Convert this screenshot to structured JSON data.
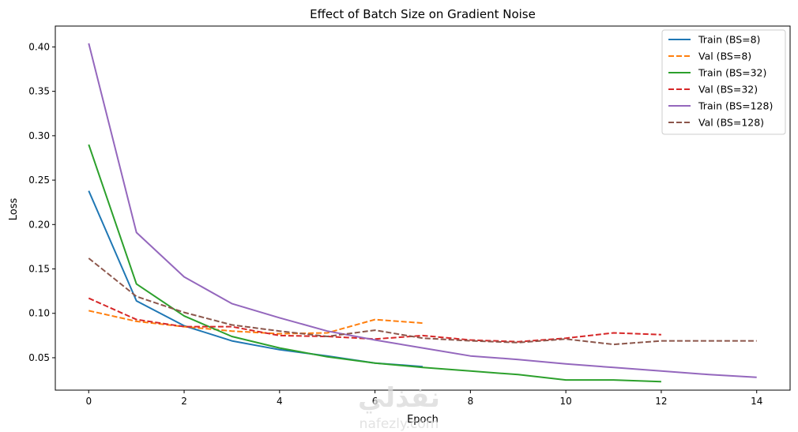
{
  "chart_data": {
    "type": "line",
    "title": "Effect of Batch Size on Gradient Noise",
    "xlabel": "Epoch",
    "ylabel": "Loss",
    "xlim": [
      -0.7,
      14.7
    ],
    "ylim": [
      0.0135,
      0.4235
    ],
    "xticks": [
      0,
      2,
      4,
      6,
      8,
      10,
      12,
      14
    ],
    "yticks": [
      0.05,
      0.1,
      0.15,
      0.2,
      0.25,
      0.3,
      0.35,
      0.4
    ],
    "ytick_labels": [
      "0.05",
      "0.10",
      "0.15",
      "0.20",
      "0.25",
      "0.30",
      "0.35",
      "0.40"
    ],
    "grid": false,
    "legend_position": "top-right",
    "series": [
      {
        "name": "Train (BS=8)",
        "color": "#1f77b4",
        "dash": "solid",
        "x": [
          0,
          1,
          2,
          3,
          4,
          5,
          6,
          7
        ],
        "y": [
          0.238,
          0.114,
          0.086,
          0.069,
          0.059,
          0.052,
          0.044,
          0.04
        ]
      },
      {
        "name": "Val (BS=8)",
        "color": "#ff7f0e",
        "dash": "dashed",
        "x": [
          0,
          1,
          2,
          3,
          4,
          5,
          6,
          7
        ],
        "y": [
          0.103,
          0.091,
          0.085,
          0.08,
          0.077,
          0.078,
          0.093,
          0.089
        ]
      },
      {
        "name": "Train (BS=32)",
        "color": "#2ca02c",
        "dash": "solid",
        "x": [
          0,
          1,
          2,
          3,
          4,
          5,
          6,
          7,
          8,
          9,
          10,
          11,
          12
        ],
        "y": [
          0.29,
          0.133,
          0.097,
          0.074,
          0.061,
          0.051,
          0.044,
          0.039,
          0.035,
          0.031,
          0.025,
          0.025,
          0.023
        ]
      },
      {
        "name": "Val (BS=32)",
        "color": "#d62728",
        "dash": "dashed",
        "x": [
          0,
          1,
          2,
          3,
          4,
          5,
          6,
          7,
          8,
          9,
          10,
          11,
          12
        ],
        "y": [
          0.117,
          0.093,
          0.085,
          0.085,
          0.075,
          0.074,
          0.071,
          0.075,
          0.07,
          0.068,
          0.072,
          0.078,
          0.076
        ]
      },
      {
        "name": "Train (BS=128)",
        "color": "#9467bd",
        "dash": "solid",
        "x": [
          0,
          1,
          2,
          3,
          4,
          5,
          6,
          7,
          8,
          9,
          10,
          11,
          12,
          13,
          14
        ],
        "y": [
          0.404,
          0.191,
          0.141,
          0.111,
          0.095,
          0.08,
          0.07,
          0.061,
          0.052,
          0.048,
          0.043,
          0.039,
          0.035,
          0.031,
          0.028
        ]
      },
      {
        "name": "Val (BS=128)",
        "color": "#8c564b",
        "dash": "dashed",
        "x": [
          0,
          1,
          2,
          3,
          4,
          5,
          6,
          7,
          8,
          9,
          10,
          11,
          12,
          13,
          14
        ],
        "y": [
          0.162,
          0.119,
          0.101,
          0.087,
          0.08,
          0.074,
          0.081,
          0.072,
          0.069,
          0.067,
          0.071,
          0.065,
          0.069,
          0.069,
          0.069
        ]
      }
    ]
  },
  "watermark": {
    "arabic": "نفذلي",
    "latin": "nafezly.com"
  }
}
